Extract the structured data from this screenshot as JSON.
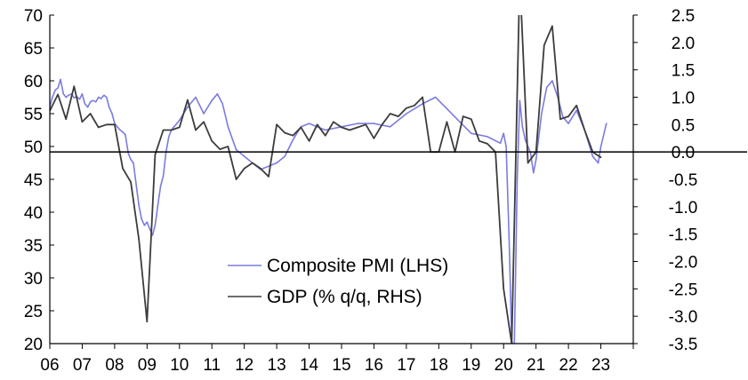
{
  "chart_data": {
    "type": "line",
    "title": "",
    "xlabel": "",
    "x_tick_labels": [
      "06",
      "07",
      "08",
      "09",
      "10",
      "11",
      "12",
      "13",
      "14",
      "15",
      "16",
      "17",
      "18",
      "19",
      "20",
      "21",
      "22",
      "23"
    ],
    "xlim": [
      2006.0,
      2024.0
    ],
    "left_axis": {
      "ylim": [
        20,
        70
      ],
      "ticks": [
        20,
        25,
        30,
        35,
        40,
        45,
        50,
        55,
        60,
        65,
        70
      ],
      "tick_labels": [
        "20",
        "25",
        "30",
        "35",
        "40",
        "45",
        "50",
        "55",
        "60",
        "65",
        "70"
      ]
    },
    "right_axis": {
      "ylim": [
        -3.5,
        2.5
      ],
      "ticks": [
        -3.5,
        -3.0,
        -2.5,
        -2.0,
        -1.5,
        -1.0,
        -0.5,
        0.0,
        0.5,
        1.0,
        1.5,
        2.0,
        2.5
      ],
      "tick_labels": [
        "-3.5",
        "-3.0",
        "-2.5",
        "-2.0",
        "-1.5",
        "-1.0",
        "-0.5",
        "0.0",
        "0.5",
        "1.0",
        "1.5",
        "2.0",
        "2.5"
      ]
    },
    "zero_line_right_axis": 0.0,
    "grid": false,
    "legend": {
      "placement": "bottom-center"
    },
    "series": [
      {
        "name": "Composite PMI (LHS)",
        "axis": "left",
        "color": "#7b7be0",
        "x": [
          2006.0,
          2006.08,
          2006.17,
          2006.25,
          2006.33,
          2006.42,
          2006.5,
          2006.58,
          2006.67,
          2006.75,
          2006.83,
          2006.92,
          2007.0,
          2007.08,
          2007.17,
          2007.25,
          2007.33,
          2007.42,
          2007.5,
          2007.58,
          2007.67,
          2007.75,
          2007.83,
          2007.92,
          2008.0,
          2008.08,
          2008.17,
          2008.25,
          2008.33,
          2008.42,
          2008.5,
          2008.58,
          2008.67,
          2008.75,
          2008.83,
          2008.92,
          2009.0,
          2009.08,
          2009.17,
          2009.25,
          2009.33,
          2009.42,
          2009.5,
          2009.58,
          2009.67,
          2009.75,
          2009.83,
          2009.92,
          2010.0,
          2010.25,
          2010.5,
          2010.75,
          2011.0,
          2011.17,
          2011.33,
          2011.5,
          2011.75,
          2012.0,
          2012.25,
          2012.5,
          2012.75,
          2013.0,
          2013.25,
          2013.5,
          2013.75,
          2014.0,
          2014.5,
          2015.0,
          2015.5,
          2016.0,
          2016.5,
          2017.0,
          2017.5,
          2017.9,
          2018.0,
          2018.3,
          2018.6,
          2019.0,
          2019.5,
          2019.9,
          2020.0,
          2020.08,
          2020.17,
          2020.25,
          2020.33,
          2020.42,
          2020.5,
          2020.58,
          2020.67,
          2020.75,
          2020.83,
          2020.92,
          2021.0,
          2021.17,
          2021.33,
          2021.5,
          2021.67,
          2021.83,
          2022.0,
          2022.25,
          2022.5,
          2022.75,
          2022.92,
          2023.0,
          2023.17
        ],
        "values": [
          56.0,
          57.5,
          58.6,
          58.9,
          60.2,
          58.0,
          57.5,
          57.8,
          58.0,
          57.4,
          57.6,
          57.2,
          58.0,
          56.5,
          56.0,
          56.8,
          57.0,
          56.8,
          57.5,
          57.3,
          57.8,
          57.5,
          56.0,
          55.0,
          53.5,
          53.0,
          52.5,
          52.2,
          51.8,
          49.0,
          48.0,
          47.5,
          44.0,
          41.0,
          39.0,
          38.0,
          38.5,
          37.5,
          36.5,
          38.0,
          41.0,
          44.0,
          45.5,
          49.0,
          51.5,
          52.5,
          53.0,
          53.5,
          54.0,
          56.0,
          57.5,
          55.0,
          57.0,
          58.0,
          56.5,
          53.0,
          49.5,
          48.5,
          47.5,
          46.5,
          47.0,
          47.5,
          48.5,
          51.0,
          53.0,
          53.5,
          52.5,
          53.0,
          53.5,
          53.5,
          53.0,
          55.0,
          56.5,
          57.5,
          57.0,
          55.5,
          54.0,
          52.0,
          51.5,
          50.5,
          52.0,
          50.0,
          36.0,
          20.5,
          19.0,
          45.0,
          57.0,
          53.0,
          51.0,
          50.0,
          49.0,
          46.0,
          48.0,
          55.0,
          59.0,
          60.0,
          57.5,
          54.5,
          53.5,
          55.5,
          52.5,
          48.5,
          47.5,
          50.0,
          53.5
        ]
      },
      {
        "name": "GDP (% q/q, RHS)",
        "axis": "right",
        "color": "#3c3c3c",
        "x": [
          2006.0,
          2006.25,
          2006.5,
          2006.75,
          2007.0,
          2007.25,
          2007.5,
          2007.75,
          2008.0,
          2008.25,
          2008.5,
          2008.75,
          2009.0,
          2009.25,
          2009.5,
          2009.75,
          2010.0,
          2010.25,
          2010.5,
          2010.75,
          2011.0,
          2011.25,
          2011.5,
          2011.75,
          2012.0,
          2012.25,
          2012.5,
          2012.75,
          2013.0,
          2013.25,
          2013.5,
          2013.75,
          2014.0,
          2014.25,
          2014.5,
          2014.75,
          2015.0,
          2015.25,
          2015.5,
          2015.75,
          2016.0,
          2016.25,
          2016.5,
          2016.75,
          2017.0,
          2017.25,
          2017.5,
          2017.75,
          2018.0,
          2018.25,
          2018.5,
          2018.75,
          2019.0,
          2019.25,
          2019.5,
          2019.75,
          2020.0,
          2020.25,
          2020.5,
          2020.75,
          2021.0,
          2021.25,
          2021.5,
          2021.75,
          2022.0,
          2022.25,
          2022.5,
          2022.75,
          2023.0
        ],
        "values": [
          0.75,
          1.05,
          0.6,
          1.2,
          0.55,
          0.7,
          0.45,
          0.5,
          0.5,
          -0.3,
          -0.55,
          -1.6,
          -3.1,
          -0.05,
          0.4,
          0.4,
          0.45,
          0.95,
          0.4,
          0.55,
          0.2,
          0.05,
          0.1,
          -0.5,
          -0.3,
          -0.2,
          -0.3,
          -0.45,
          0.5,
          0.35,
          0.3,
          0.45,
          0.2,
          0.5,
          0.3,
          0.55,
          0.45,
          0.4,
          0.45,
          0.5,
          0.25,
          0.5,
          0.7,
          0.65,
          0.8,
          0.85,
          1.0,
          0.0,
          0.0,
          0.55,
          0.0,
          0.65,
          0.6,
          0.2,
          0.15,
          0.0,
          -2.5,
          -3.5,
          3.2,
          -0.2,
          0.0,
          1.95,
          2.3,
          0.6,
          0.65,
          0.85,
          0.4,
          0.0,
          -0.1
        ]
      }
    ]
  }
}
